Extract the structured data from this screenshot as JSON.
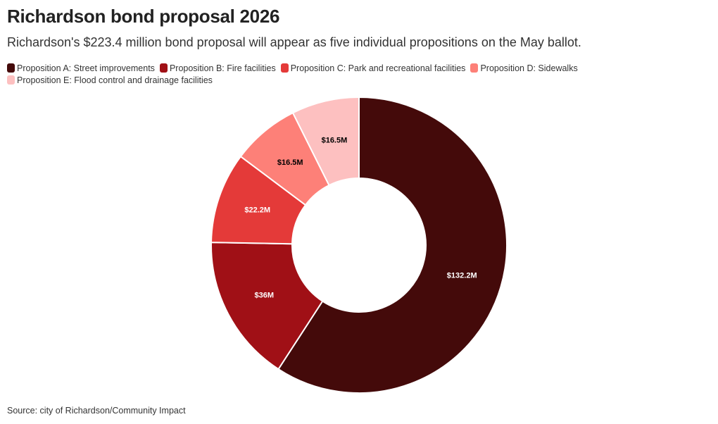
{
  "chart_data": {
    "type": "pie",
    "title": "Richardson bond proposal 2026",
    "subtitle": "Richardson's $223.4 million bond proposal will appear as five individual propositions on the May ballot.",
    "source": "Source: city of Richardson/Community Impact",
    "legend_position": "top-left",
    "slices": [
      {
        "name": "Proposition A: Street improvements",
        "value": 132.2,
        "label": "$132.2M",
        "color": "#440a0a",
        "label_color": "#ffffff"
      },
      {
        "name": "Proposition B: Fire facilities",
        "value": 36,
        "label": "$36M",
        "color": "#a01016",
        "label_color": "#ffffff"
      },
      {
        "name": "Proposition C: Park and recreational facilities",
        "value": 22.2,
        "label": "$22.2M",
        "color": "#e43a39",
        "label_color": "#ffffff"
      },
      {
        "name": "Proposition D: Sidewalks",
        "value": 16.5,
        "label": "$16.5M",
        "color": "#fd8078",
        "label_color": "#000000"
      },
      {
        "name": "Proposition E: Flood control and drainage facilities",
        "value": 16.5,
        "label": "$16.5M",
        "color": "#fdc0c0",
        "label_color": "#000000"
      }
    ]
  }
}
